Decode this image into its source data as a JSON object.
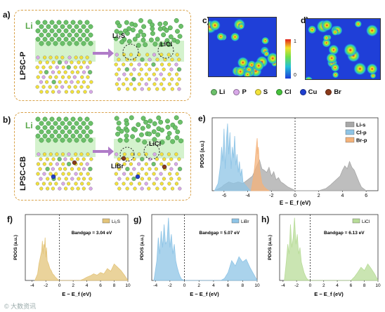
{
  "panels": {
    "a": {
      "letter": "a)",
      "side_label": "LPSC-P",
      "li_tag": "Li",
      "annotations": [
        "Li₂S",
        "LiCl"
      ]
    },
    "b": {
      "letter": "b)",
      "side_label": "LPSC-CB",
      "li_tag": "Li",
      "annotations": [
        "LiCl",
        "LiBr"
      ]
    },
    "c": {
      "letter": "c)"
    },
    "d": {
      "letter": "d)"
    },
    "colorbar": {
      "max": "1",
      "min": "0"
    },
    "e": {
      "letter": "e)"
    },
    "f": {
      "letter": "f)",
      "legend": "Li₂S",
      "bandgap": "Bandgap = 3.04 eV"
    },
    "g": {
      "letter": "g)",
      "legend": "LiBr",
      "bandgap": "Bandgap = 5.07 eV"
    },
    "h": {
      "letter": "h)",
      "legend": "LiCl",
      "bandgap": "Bandgap = 6.13 eV"
    }
  },
  "element_legend": [
    {
      "label": "Li",
      "color": "#6cc06a"
    },
    {
      "label": "P",
      "color": "#d8a8e8"
    },
    {
      "label": "S",
      "color": "#f2e23a"
    },
    {
      "label": "Cl",
      "color": "#46c23c"
    },
    {
      "label": "Cu",
      "color": "#1f3fd0"
    },
    {
      "label": "Br",
      "color": "#8a3a1a"
    }
  ],
  "watermark": "© 大数资讯",
  "chart_data": [
    {
      "id": "e",
      "type": "area",
      "xlabel": "E − E_f (eV)",
      "ylabel": "PDOS (a.u.)",
      "xlim": [
        -7,
        7
      ],
      "xticks": [
        -6,
        -4,
        -2,
        0,
        2,
        4,
        6
      ],
      "series": [
        {
          "name": "Li-s",
          "color": "#a8a8a8",
          "x": [
            -6.8,
            -6.2,
            -6.0,
            -5.6,
            -5.2,
            -4.8,
            -4.4,
            -4.0,
            -3.6,
            -3.2,
            -3.0,
            -2.8,
            -2.6,
            -2.4,
            -2.2,
            -2.0,
            -1.8,
            -1.6,
            -1.4,
            -1.2,
            -1.0,
            -0.6,
            -0.2,
            0,
            2.0,
            2.6,
            3.0,
            3.4,
            3.8,
            4.0,
            4.2,
            4.4,
            4.6,
            4.8,
            5.0,
            5.2,
            5.4,
            5.6,
            6.0
          ],
          "y": [
            0,
            0.05,
            0.08,
            0.12,
            0.1,
            0.12,
            0.1,
            0.15,
            0.2,
            0.35,
            0.42,
            0.3,
            0.28,
            0.25,
            0.32,
            0.2,
            0.26,
            0.15,
            0.18,
            0.12,
            0.1,
            0.05,
            0.02,
            0,
            0,
            0.03,
            0.08,
            0.14,
            0.2,
            0.28,
            0.34,
            0.3,
            0.4,
            0.32,
            0.28,
            0.2,
            0.12,
            0.05,
            0
          ]
        },
        {
          "name": "Cl-p",
          "color": "#8ec4e6",
          "x": [
            -6.8,
            -6.5,
            -6.3,
            -6.2,
            -6.1,
            -6.0,
            -5.9,
            -5.8,
            -5.7,
            -5.6,
            -5.5,
            -5.4,
            -5.3,
            -5.2,
            -5.1,
            -5.0,
            -4.9,
            -4.8,
            -4.7,
            -4.6,
            -4.5,
            -4.4,
            -4.2,
            -4.0,
            -3.8
          ],
          "y": [
            0,
            0.1,
            0.35,
            0.6,
            0.4,
            0.85,
            0.3,
            0.7,
            0.92,
            0.5,
            0.8,
            0.3,
            0.6,
            0.45,
            0.75,
            0.35,
            0.5,
            0.25,
            0.4,
            0.2,
            0.3,
            0.12,
            0.08,
            0.04,
            0
          ]
        },
        {
          "name": "Br-p",
          "color": "#f4b27a",
          "x": [
            -3.7,
            -3.5,
            -3.4,
            -3.3,
            -3.2,
            -3.15,
            -3.1,
            -3.0,
            -2.9,
            -2.8,
            -2.6,
            -2.4,
            -2.2
          ],
          "y": [
            0,
            0.2,
            0.35,
            0.55,
            0.72,
            0.5,
            0.6,
            0.3,
            0.2,
            0.1,
            0.05,
            0.02,
            0
          ]
        }
      ]
    },
    {
      "id": "f",
      "type": "area",
      "xlabel": "E − E_f (eV)",
      "ylabel": "PDOS (a.u.)",
      "xlim": [
        -5,
        10
      ],
      "xticks": [
        -4,
        -2,
        0,
        2,
        4,
        6,
        8,
        10
      ],
      "series": [
        {
          "name": "Li₂S",
          "color": "#e3c47a",
          "x": [
            -3.6,
            -3.2,
            -3.0,
            -2.8,
            -2.6,
            -2.5,
            -2.4,
            -2.3,
            -2.2,
            -2.1,
            -2.0,
            -1.9,
            -1.8,
            -1.6,
            -1.4,
            -1.2,
            -1.0,
            -0.8,
            -0.6,
            -0.4,
            -0.2,
            0,
            3.0,
            3.5,
            4.0,
            4.5,
            5.0,
            5.5,
            6.0,
            6.5,
            7.0,
            7.5,
            8.0,
            8.5,
            9.0,
            9.5,
            10
          ],
          "y": [
            0,
            0.1,
            0.25,
            0.35,
            0.45,
            0.6,
            0.4,
            0.55,
            0.5,
            0.65,
            0.35,
            0.5,
            0.3,
            0.25,
            0.18,
            0.15,
            0.1,
            0.08,
            0.05,
            0.03,
            0.01,
            0,
            0,
            0.02,
            0.05,
            0.07,
            0.1,
            0.08,
            0.12,
            0.1,
            0.18,
            0.14,
            0.25,
            0.2,
            0.15,
            0.08,
            0
          ]
        }
      ]
    },
    {
      "id": "g",
      "type": "area",
      "xlabel": "E − E_f (eV)",
      "ylabel": "PDOS (a.u.)",
      "xlim": [
        -4.5,
        10
      ],
      "xticks": [
        -4,
        -2,
        0,
        2,
        4,
        6,
        8,
        10
      ],
      "series": [
        {
          "name": "LiBr",
          "color": "#8ec4e6",
          "x": [
            -4.2,
            -3.8,
            -3.6,
            -3.4,
            -3.2,
            -3.0,
            -2.8,
            -2.6,
            -2.4,
            -2.2,
            -2.0,
            -1.8,
            -1.6,
            -1.4,
            -1.2,
            -1.0,
            -0.8,
            -0.6,
            -0.4,
            0,
            5.0,
            5.5,
            6.0,
            6.5,
            7.0,
            7.5,
            8.0,
            8.5,
            9.0,
            9.5,
            10
          ],
          "y": [
            0,
            0.3,
            0.65,
            0.4,
            0.75,
            0.5,
            0.85,
            0.55,
            0.6,
            0.95,
            0.5,
            0.7,
            0.4,
            0.55,
            0.3,
            0.2,
            0.12,
            0.06,
            0.02,
            0,
            0,
            0.03,
            0.12,
            0.3,
            0.22,
            0.36,
            0.28,
            0.32,
            0.2,
            0.1,
            0
          ]
        }
      ]
    },
    {
      "id": "h",
      "type": "area",
      "xlabel": "E − E_f (eV)",
      "ylabel": "PDOS (a.u.)",
      "xlim": [
        -4.5,
        10
      ],
      "xticks": [
        -4,
        -2,
        0,
        2,
        4,
        6,
        8,
        10
      ],
      "series": [
        {
          "name": "LiCl",
          "color": "#b8dc98",
          "x": [
            -3.8,
            -3.5,
            -3.3,
            -3.1,
            -2.9,
            -2.7,
            -2.5,
            -2.3,
            -2.1,
            -1.9,
            -1.7,
            -1.5,
            -1.3,
            -1.1,
            -0.9,
            -0.7,
            -0.5,
            -0.3,
            0,
            6.0,
            6.5,
            7.0,
            7.5,
            8.0,
            8.5,
            9.0,
            9.5,
            10
          ],
          "y": [
            0,
            0.3,
            0.55,
            0.4,
            0.85,
            0.5,
            0.65,
            0.95,
            0.55,
            0.7,
            0.4,
            0.5,
            0.28,
            0.2,
            0.12,
            0.07,
            0.03,
            0.01,
            0,
            0,
            0.05,
            0.12,
            0.2,
            0.15,
            0.25,
            0.18,
            0.1,
            0
          ]
        }
      ]
    }
  ]
}
